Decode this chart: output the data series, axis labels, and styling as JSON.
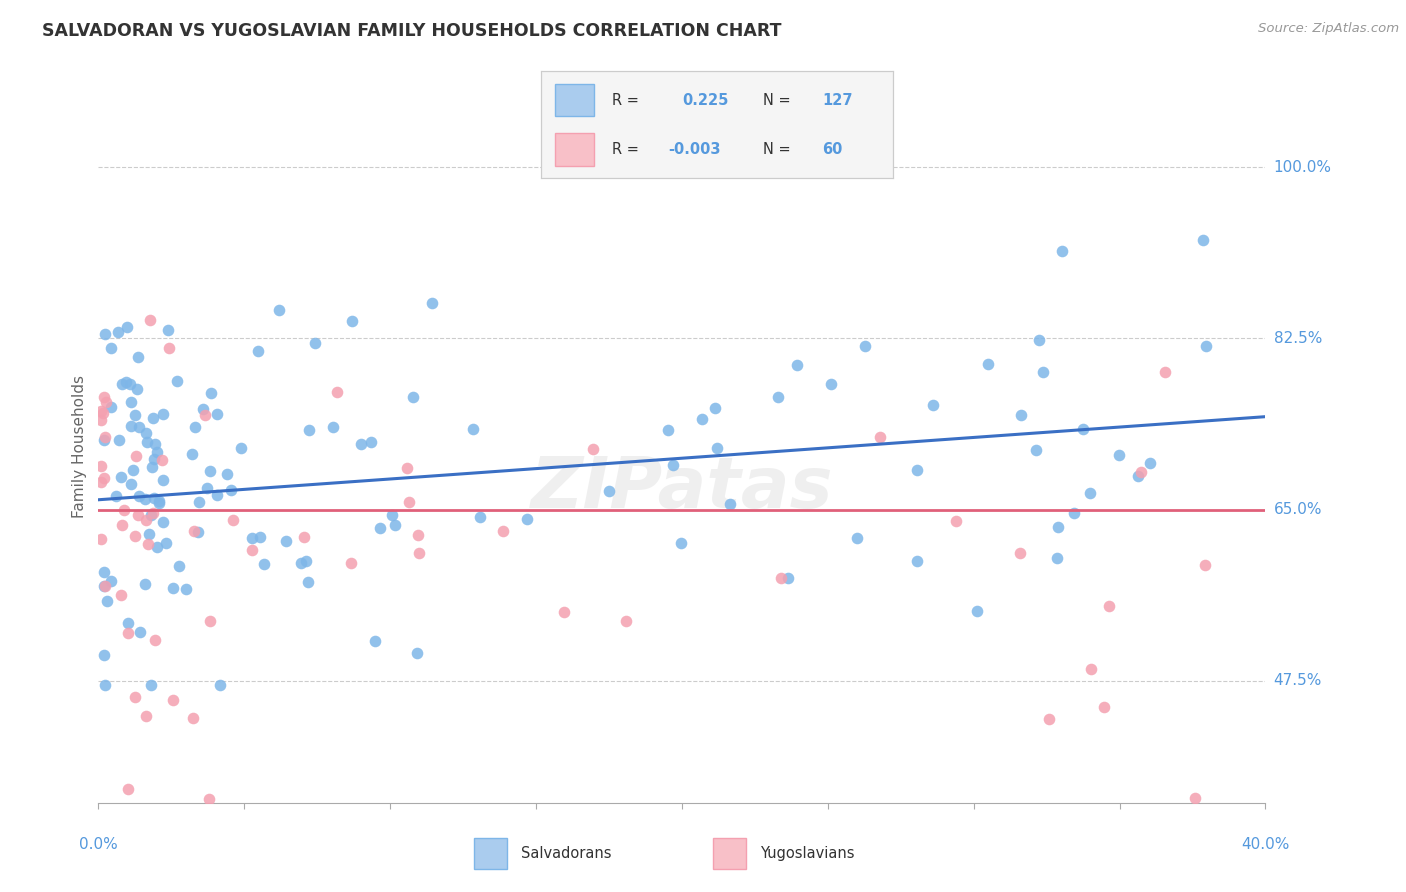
{
  "title": "SALVADORAN VS YUGOSLAVIAN FAMILY HOUSEHOLDS CORRELATION CHART",
  "source": "Source: ZipAtlas.com",
  "ylabel": "Family Households",
  "ytick_vals": [
    47.5,
    65.0,
    82.5,
    100.0
  ],
  "ytick_labels": [
    "47.5%",
    "65.0%",
    "82.5%",
    "100.0%"
  ],
  "xlim": [
    0.0,
    40.0
  ],
  "ylim": [
    35.0,
    108.0
  ],
  "blue_dot_color": "#7EB6E8",
  "pink_dot_color": "#F4A0B0",
  "blue_line_color": "#3A6FC4",
  "pink_line_color": "#E0607A",
  "blue_trend_x": [
    0,
    40
  ],
  "blue_trend_y": [
    66.0,
    74.5
  ],
  "pink_trend_x": [
    0,
    40
  ],
  "pink_trend_y": [
    65.0,
    65.0
  ],
  "legend_blue_r": "0.225",
  "legend_blue_n": "127",
  "legend_pink_r": "-0.003",
  "legend_pink_n": "60",
  "watermark": "ZIPatas",
  "background_color": "#FFFFFF",
  "grid_color": "#CCCCCC",
  "tick_color": "#5599DD",
  "title_color": "#333333",
  "source_color": "#999999",
  "ylabel_color": "#666666"
}
